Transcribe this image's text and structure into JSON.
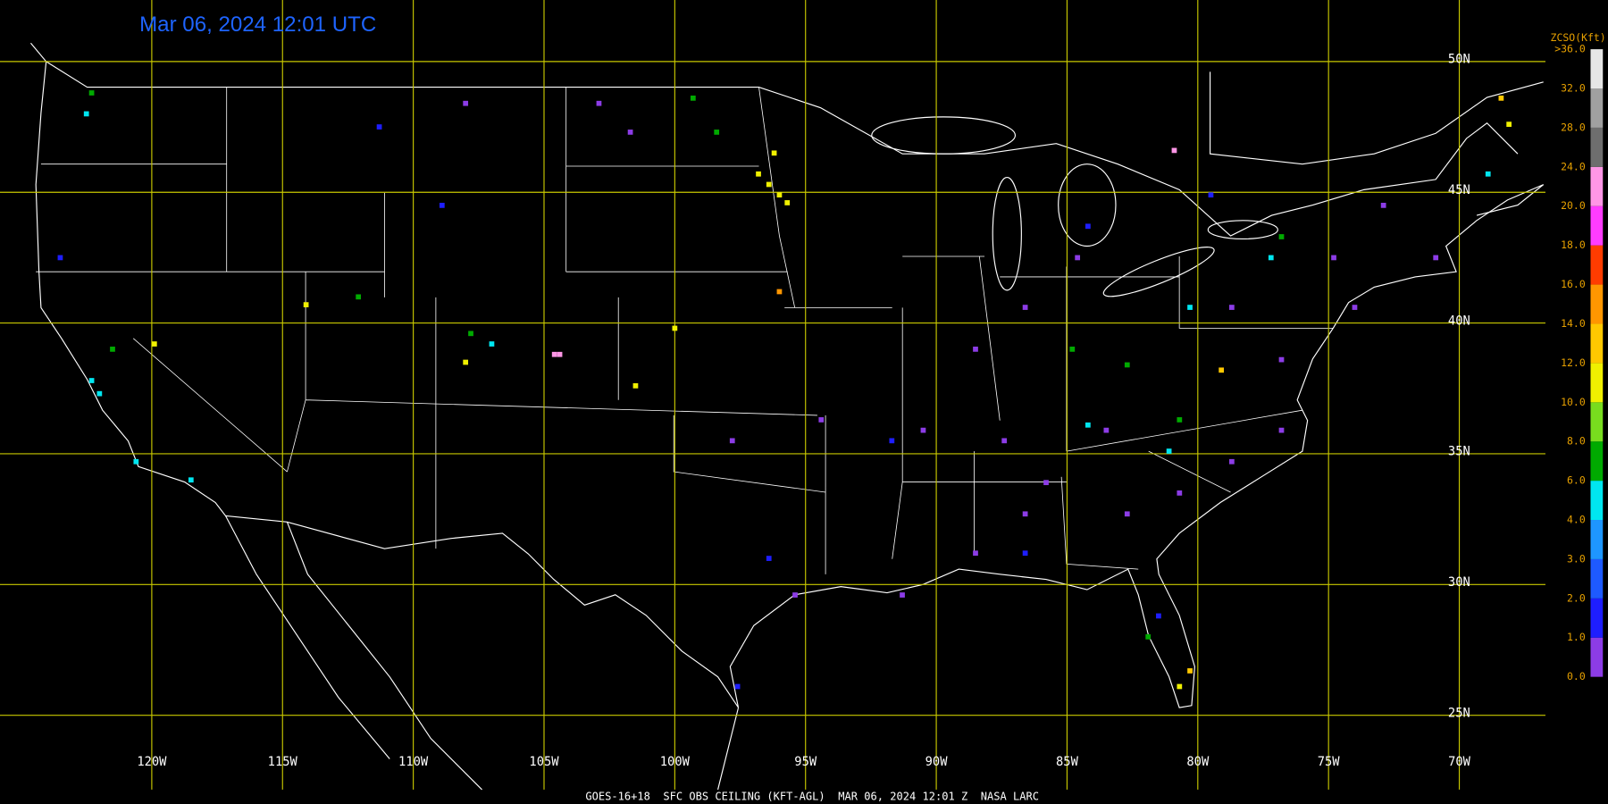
{
  "map": {
    "title": "Mar 06, 2024 12:01 UTC",
    "caption": "GOES-16+18  SFC OBS CEILING (KFT-AGL)  MAR 06, 2024 12:01 Z  NASA LARC",
    "lon_ticks": [
      {
        "value": -120,
        "label": "120W"
      },
      {
        "value": -115,
        "label": "115W"
      },
      {
        "value": -110,
        "label": "110W"
      },
      {
        "value": -105,
        "label": "105W"
      },
      {
        "value": -100,
        "label": "100W"
      },
      {
        "value": -95,
        "label": "95W"
      },
      {
        "value": -90,
        "label": "90W"
      },
      {
        "value": -85,
        "label": "85W"
      },
      {
        "value": -80,
        "label": "80W"
      },
      {
        "value": -75,
        "label": "75W"
      },
      {
        "value": -70,
        "label": "70W"
      }
    ],
    "lat_ticks": [
      {
        "value": 50,
        "label": "50N"
      },
      {
        "value": 45,
        "label": "45N"
      },
      {
        "value": 40,
        "label": "40N"
      },
      {
        "value": 35,
        "label": "35N"
      },
      {
        "value": 30,
        "label": "30N"
      },
      {
        "value": 25,
        "label": "25N"
      }
    ],
    "grid_color": "#c8c800",
    "legend": {
      "title": "ZCSO(Kft)",
      "bounds": [
        {
          "value": 0,
          "label": "0.0"
        },
        {
          "value": 1,
          "label": "1.0"
        },
        {
          "value": 2,
          "label": "2.0"
        },
        {
          "value": 3,
          "label": "3.0"
        },
        {
          "value": 4,
          "label": "4.0"
        },
        {
          "value": 6,
          "label": "6.0"
        },
        {
          "value": 8,
          "label": "8.0"
        },
        {
          "value": 10,
          "label": "10.0"
        },
        {
          "value": 12,
          "label": "12.0"
        },
        {
          "value": 14,
          "label": "14.0"
        },
        {
          "value": 16,
          "label": "16.0"
        },
        {
          "value": 18,
          "label": "18.0"
        },
        {
          "value": 20,
          "label": "20.0"
        },
        {
          "value": 24,
          "label": "24.0"
        },
        {
          "value": 28,
          "label": "28.0"
        },
        {
          "value": 32,
          "label": "32.0"
        },
        {
          "value": 36,
          "label": ">36.0"
        }
      ],
      "colors": [
        "#8c3ce6",
        "#1e1eff",
        "#1e5aff",
        "#1e96ff",
        "#00e6f0",
        "#00aa00",
        "#78dc1e",
        "#f0f000",
        "#ffc800",
        "#ff9600",
        "#ff3c00",
        "#ff3cff",
        "#ff96e6",
        "#6e6e6e",
        "#a0a0a0",
        "#e6e6e6"
      ]
    },
    "stations": [
      [
        -96.4,
        45.3,
        11
      ],
      [
        -96.0,
        44.9,
        11
      ],
      [
        -96.8,
        45.7,
        11
      ],
      [
        -96.2,
        46.5,
        11
      ],
      [
        -95.7,
        44.6,
        11
      ],
      [
        -99.3,
        48.6,
        7
      ],
      [
        -98.4,
        47.3,
        7
      ],
      [
        -101.7,
        47.3,
        0.5
      ],
      [
        -102.9,
        48.4,
        0.5
      ],
      [
        -108.9,
        44.5,
        1.5
      ],
      [
        -111.3,
        47.5,
        1.5
      ],
      [
        -108.0,
        48.4,
        0.5
      ],
      [
        -122.5,
        48.0,
        5
      ],
      [
        -122.3,
        48.8,
        7
      ],
      [
        -123.5,
        42.5,
        1.5
      ],
      [
        -122.3,
        37.8,
        5
      ],
      [
        -122.0,
        37.3,
        5
      ],
      [
        -119.9,
        39.2,
        11
      ],
      [
        -121.5,
        39.0,
        7
      ],
      [
        -118.5,
        34.0,
        5
      ],
      [
        -120.6,
        34.7,
        5
      ],
      [
        -112.1,
        41.0,
        7
      ],
      [
        -114.1,
        40.7,
        11
      ],
      [
        -107.8,
        39.6,
        7
      ],
      [
        -107.0,
        39.2,
        5
      ],
      [
        -108.0,
        38.5,
        11
      ],
      [
        -104.6,
        38.8,
        22
      ],
      [
        -104.4,
        38.8,
        22
      ],
      [
        -100.0,
        39.8,
        11
      ],
      [
        -101.5,
        37.6,
        11
      ],
      [
        -96.0,
        41.2,
        15
      ],
      [
        -97.8,
        35.5,
        0.5
      ],
      [
        -94.4,
        36.3,
        0.5
      ],
      [
        -96.4,
        31.0,
        1.5
      ],
      [
        -95.4,
        29.6,
        0.5
      ],
      [
        -97.6,
        26.1,
        1.5
      ],
      [
        -91.3,
        29.6,
        0.5
      ],
      [
        -86.6,
        40.6,
        0.5
      ],
      [
        -88.5,
        39.0,
        0.5
      ],
      [
        -84.6,
        42.5,
        0.5
      ],
      [
        -90.5,
        35.9,
        0.5
      ],
      [
        -87.4,
        35.5,
        0.5
      ],
      [
        -83.5,
        35.9,
        0.5
      ],
      [
        -86.6,
        32.7,
        0.5
      ],
      [
        -88.5,
        31.2,
        0.5
      ],
      [
        -78.7,
        40.6,
        0.5
      ],
      [
        -74.8,
        42.5,
        0.5
      ],
      [
        -72.9,
        44.5,
        0.5
      ],
      [
        -76.8,
        38.6,
        0.5
      ],
      [
        -78.7,
        34.7,
        0.5
      ],
      [
        -80.7,
        33.5,
        0.5
      ],
      [
        -82.7,
        32.7,
        0.5
      ],
      [
        -85.8,
        33.9,
        0.5
      ],
      [
        -70.9,
        42.5,
        0.5
      ],
      [
        -74.0,
        40.6,
        0.5
      ],
      [
        -76.8,
        35.9,
        0.5
      ],
      [
        -91.7,
        35.5,
        1.5
      ],
      [
        -86.6,
        31.2,
        1.5
      ],
      [
        -81.5,
        28.8,
        1.5
      ],
      [
        -79.5,
        44.9,
        1.5
      ],
      [
        -84.2,
        43.7,
        1.5
      ],
      [
        -82.7,
        38.4,
        7
      ],
      [
        -80.7,
        36.3,
        7
      ],
      [
        -76.8,
        43.3,
        7
      ],
      [
        -84.8,
        39.0,
        7
      ],
      [
        -80.3,
        40.6,
        5
      ],
      [
        -77.2,
        42.5,
        5
      ],
      [
        -81.1,
        35.1,
        5
      ],
      [
        -84.2,
        36.1,
        5
      ],
      [
        -80.7,
        26.1,
        11
      ],
      [
        -80.3,
        26.7,
        13
      ],
      [
        -79.1,
        38.2,
        13
      ],
      [
        -81.9,
        28.0,
        7
      ],
      [
        -80.9,
        46.6,
        22
      ],
      [
        -68.4,
        48.6,
        13
      ],
      [
        -68.1,
        47.6,
        11
      ],
      [
        -68.9,
        45.7,
        5
      ]
    ]
  }
}
